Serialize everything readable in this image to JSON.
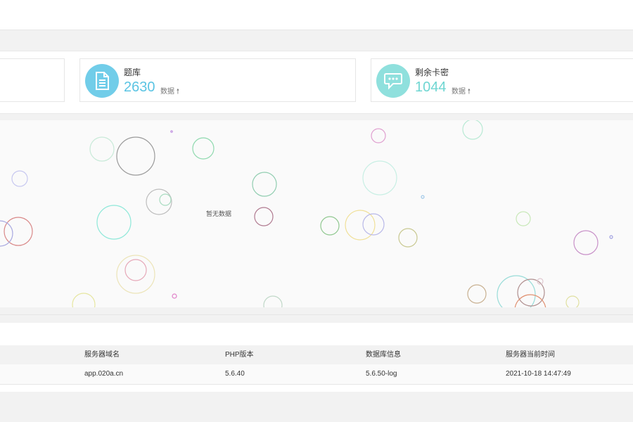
{
  "stats": [
    {
      "title": "题库",
      "value": "2630",
      "unit": "数据",
      "icon": "document-icon",
      "color": "#71cde9",
      "num_color": "#5bc4e3"
    },
    {
      "title": "剩余卡密",
      "value": "1044",
      "unit": "数据",
      "icon": "chat-bubble-icon",
      "color": "#8fe0dd",
      "num_color": "#6fd6d2"
    }
  ],
  "panel": {
    "empty_text": "暂无数据"
  },
  "server_table": {
    "headers": [
      "服务器域名",
      "PHP版本",
      "数据库信息",
      "服务器当前时间"
    ],
    "row": [
      "app.020a.cn",
      "5.6.40",
      "5.6.50-log",
      "2021-10-18 14:47:49"
    ]
  }
}
